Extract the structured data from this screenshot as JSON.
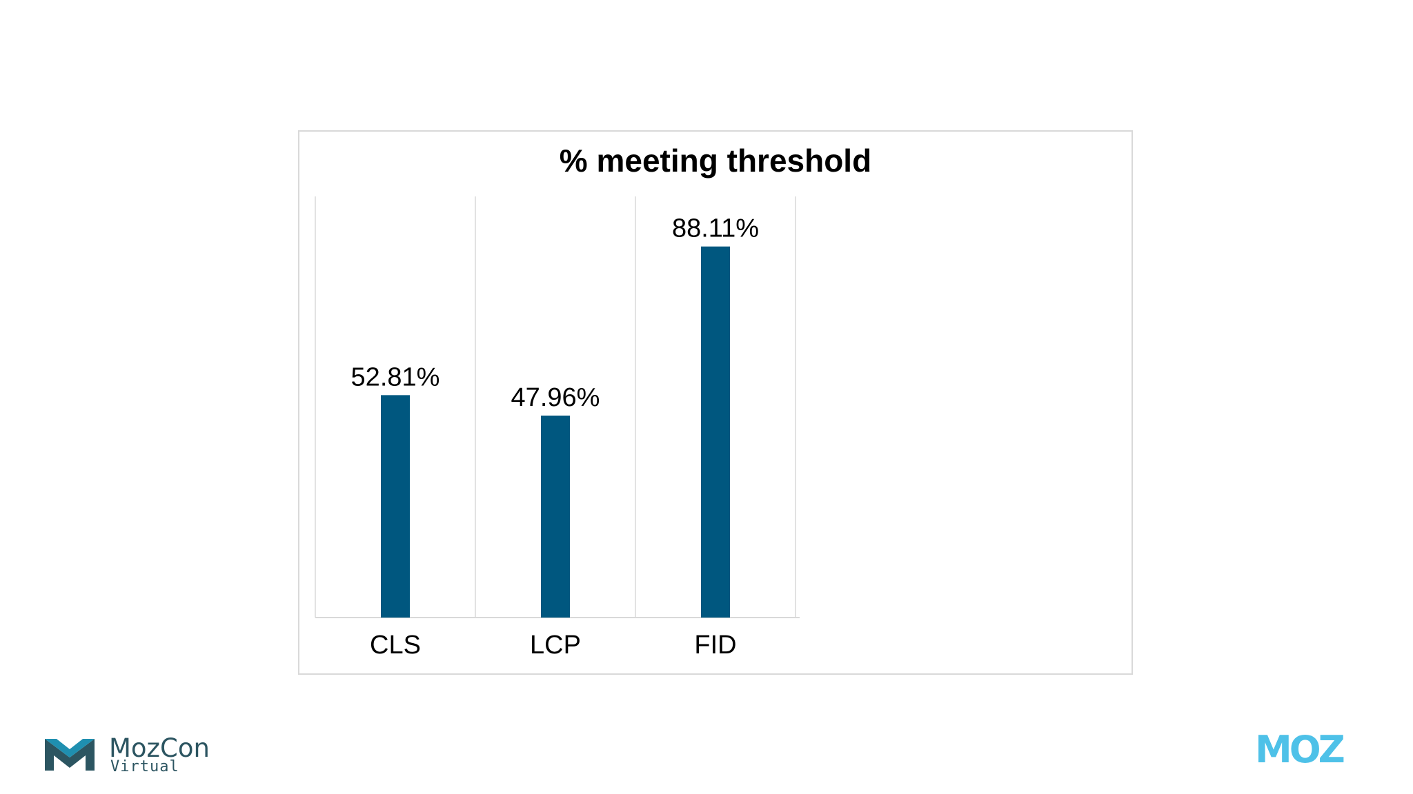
{
  "chart_data": {
    "type": "bar",
    "title": "% meeting threshold",
    "categories": [
      "CLS",
      "LCP",
      "FID"
    ],
    "values": [
      52.81,
      47.96,
      88.11
    ],
    "value_labels": [
      "52.81%",
      "47.96%",
      "88.11%"
    ],
    "ylim": [
      0,
      100
    ],
    "grid": "vertical category separators",
    "bar_color": "#00577f",
    "legend": "none"
  },
  "branding": {
    "event_name": "MozCon",
    "event_subtitle": "Virtual",
    "brand_name": "MOZ",
    "event_logo_icon": "mozcon-m-icon",
    "event_color": "#2c5561",
    "event_accent": "#1f8fb0",
    "brand_color": "#4ec1e8"
  }
}
